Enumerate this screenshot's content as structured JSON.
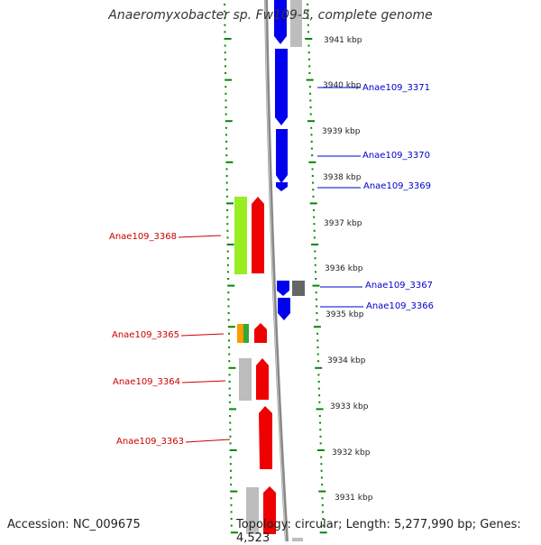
{
  "title": "Anaeromyxobacter sp. Fw109-5, complete genome",
  "accession_text": "Accession: NC_009675",
  "summary_text": "Topology: circular; Length: 5,277,990 bp; Genes: 4,523",
  "colors": {
    "forward_cds": "#0000ee",
    "reverse_cds": "#ee0000",
    "other_feature": "#bdbdbd",
    "dark_feature": "#666666",
    "cog_a": "#99ee22",
    "cog_b": "#ff9900",
    "cog_c": "#33aa33",
    "tick_mark": "#008800",
    "backbone": "#888888",
    "forward_label": "#0000cc",
    "reverse_label": "#cc0000"
  },
  "kbp_ticks": [
    "3941 kbp",
    "3940 kbp",
    "3939 kbp",
    "3938 kbp",
    "3937 kbp",
    "3936 kbp",
    "3935 kbp",
    "3934 kbp",
    "3933 kbp",
    "3932 kbp",
    "3931 kbp"
  ],
  "gene_labels": {
    "forward": [
      "Anae109_3371",
      "Anae109_3370",
      "Anae109_3369",
      "Anae109_3367",
      "Anae109_3366"
    ],
    "reverse": [
      "Anae109_3368",
      "Anae109_3365",
      "Anae109_3364",
      "Anae109_3363"
    ]
  }
}
